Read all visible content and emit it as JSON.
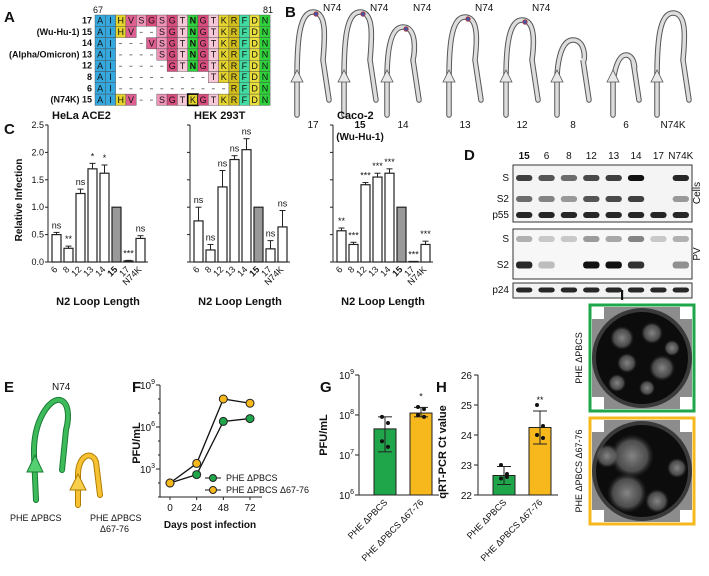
{
  "panel_a": {
    "label": "A",
    "pos_start": "67",
    "pos_end": "81",
    "rows": [
      {
        "name": "",
        "len": "17",
        "seq": "AIHVSGSGTNGTKRFDN"
      },
      {
        "name": "(Wu-Hu-1)",
        "len": "15",
        "seq": "AIHV--SGTNGTKRFDN"
      },
      {
        "name": "",
        "len": "14",
        "seq": "AI---VSGTNGTKRFDN"
      },
      {
        "name": "(Alpha/Omicron)",
        "len": "13",
        "seq": "AI----SGTNGTKRFDN"
      },
      {
        "name": "",
        "len": "12",
        "seq": "AI-----GTNGTKRFDN"
      },
      {
        "name": "",
        "len": "8",
        "seq": "AI---------TKRFDN"
      },
      {
        "name": "",
        "len": "6",
        "seq": "AI-----------RFDN"
      },
      {
        "name": "(N74K)",
        "len": "15",
        "seq": "AIHV--SGTKGTKRFDN"
      }
    ],
    "residue_colors": {
      "A": "#35a8de",
      "I": "#35a8de",
      "H": "#e6d52e",
      "V": "#de5f92",
      "S": "#ef92b8",
      "G": "#d94d7e",
      "T": "#f7c7d7",
      "N": "#2fd23a",
      "K": "#e6d52e",
      "R": "#d4bf1c",
      "F": "#42dca3",
      "D": "#e8de3c"
    }
  },
  "panel_b": {
    "label": "B",
    "residue_label": "N74",
    "structures": [
      {
        "label": "17",
        "sub": "",
        "shows_n74": true
      },
      {
        "label": "15",
        "sub": "(Wu-Hu-1)",
        "shows_n74": true
      },
      {
        "label": "14",
        "sub": "",
        "shows_n74": true
      },
      {
        "label": "13",
        "sub": "",
        "shows_n74": true
      },
      {
        "label": "12",
        "sub": "",
        "shows_n74": true
      },
      {
        "label": "8",
        "sub": "",
        "shows_n74": false
      },
      {
        "label": "6",
        "sub": "",
        "shows_n74": false
      },
      {
        "label": "N74K",
        "sub": "",
        "shows_n74": false
      }
    ]
  },
  "panel_c": {
    "label": "C",
    "ylabel": "Relative Infection",
    "xlabel": "N2 Loop Length"
  },
  "panel_d": {
    "label": "D",
    "lanes": [
      "15",
      "6",
      "8",
      "12",
      "13",
      "14",
      "17",
      "N74K"
    ],
    "cells_bands": [
      "S",
      "S2",
      "p55"
    ],
    "pv_bands": [
      "S",
      "S2"
    ],
    "loading_band": "p24",
    "cells_label": "Cells",
    "pv_label": "PV"
  },
  "panel_e": {
    "label": "E",
    "residue_label": "N74",
    "left_caption": "PHE ΔPBCS",
    "right_caption_line1": "PHE ΔPBCS",
    "right_caption_line2": "Δ67-76",
    "colors": {
      "PHE ΔPBCS": "#1fa64a",
      "PHE ΔPBCS Δ67-76": "#f6b81c"
    }
  },
  "panel_i": {
    "label": "I",
    "top_label": "PHE ΔPBCS",
    "bottom_label": "PHE ΔPBCS Δ67-76",
    "top_border": "#1fa64a",
    "bottom_border": "#f6b81c"
  },
  "chart_data": [
    {
      "panel": "C",
      "type": "bar",
      "title": "HeLa ACE2",
      "categories": [
        "6",
        "8",
        "12",
        "13",
        "14",
        "15",
        "17",
        "N74K"
      ],
      "values": [
        0.5,
        0.25,
        1.25,
        1.7,
        1.62,
        1.0,
        0.02,
        0.43
      ],
      "errors": [
        0.04,
        0.04,
        0.08,
        0.1,
        0.15,
        0,
        0.01,
        0.05
      ],
      "significance": [
        "ns",
        "**",
        "ns",
        "*",
        "*",
        "",
        "***",
        "ns"
      ],
      "reference_category": "15",
      "ylabel": "Relative Infection",
      "xlabel": "N2 Loop Length",
      "ylim": [
        0,
        2.5
      ],
      "yticks": [
        "0.0",
        "0.5",
        "1.0",
        "1.5",
        "2.0",
        "2.5"
      ]
    },
    {
      "panel": "C",
      "type": "bar",
      "title": "HEK 293T",
      "categories": [
        "6",
        "8",
        "12",
        "13",
        "14",
        "15",
        "17",
        "N74K"
      ],
      "values": [
        0.75,
        0.22,
        1.37,
        1.87,
        2.05,
        1.0,
        0.24,
        0.64
      ],
      "errors": [
        0.25,
        0.1,
        0.3,
        0.07,
        0.2,
        0,
        0.15,
        0.3
      ],
      "significance": [
        "ns",
        "ns",
        "ns",
        "ns",
        "ns",
        "",
        "ns",
        "ns"
      ],
      "reference_category": "15",
      "xlabel": "N2 Loop Length",
      "ylim": [
        0,
        2.5
      ]
    },
    {
      "panel": "C",
      "type": "bar",
      "title": "Caco-2",
      "categories": [
        "6",
        "8",
        "12",
        "13",
        "14",
        "15",
        "17",
        "N74K"
      ],
      "values": [
        0.57,
        0.32,
        1.41,
        1.55,
        1.62,
        1.0,
        0.01,
        0.32
      ],
      "errors": [
        0.05,
        0.04,
        0.04,
        0.07,
        0.08,
        0,
        0.0,
        0.06
      ],
      "significance": [
        "**",
        "***",
        "***",
        "***",
        "***",
        "",
        "***",
        "***"
      ],
      "reference_category": "15",
      "xlabel": "N2 Loop Length",
      "ylim": [
        0,
        2.5
      ]
    },
    {
      "panel": "F",
      "type": "line",
      "yscale": "log",
      "ylabel": "PFU/mL",
      "xlabel": "Days post infection",
      "x": [
        0,
        24,
        48,
        72
      ],
      "ylim": [
        10,
        1000000000
      ],
      "yticks": [
        "10^3",
        "10^6",
        "10^9"
      ],
      "xticks": [
        "0",
        "24",
        "48",
        "72"
      ],
      "legend": "bottom-right",
      "series": [
        {
          "name": "PHE ΔPBCS",
          "color": "#1fa64a",
          "values": [
            100,
            400,
            2500000,
            4000000
          ]
        },
        {
          "name": "PHE ΔPBCS Δ67-76",
          "color": "#f6b81c",
          "values": [
            100,
            2500,
            100000000,
            50000000
          ]
        }
      ]
    },
    {
      "panel": "G",
      "type": "bar",
      "yscale": "log",
      "ylabel": "PFU/mL",
      "ylim": [
        1000000,
        1000000000
      ],
      "yticks": [
        "10^6",
        "10^7",
        "10^8",
        "10^9"
      ],
      "categories": [
        "PHE ΔPBCS",
        "PHE ΔPBCS Δ67-76"
      ],
      "colors": [
        "#1fa64a",
        "#f6b81c"
      ],
      "values": [
        45000000,
        112000000
      ],
      "error_range": [
        [
          12000000,
          90000000
        ],
        [
          90000000,
          155000000
        ]
      ],
      "points": [
        [
          90000000,
          63000000,
          22000000,
          16000000
        ],
        [
          158000000,
          140000000,
          100000000,
          90000000
        ]
      ],
      "significance": [
        "",
        "*"
      ]
    },
    {
      "panel": "H",
      "type": "bar",
      "ylabel": "qRT-PCR Ct value",
      "ylim": [
        22,
        26
      ],
      "yticks": [
        "22",
        "23",
        "24",
        "25",
        "26"
      ],
      "categories": [
        "PHE ΔPBCS",
        "PHE ΔPBCS Δ67-76"
      ],
      "colors": [
        "#1fa64a",
        "#f6b81c"
      ],
      "values": [
        22.65,
        24.25
      ],
      "error_range": [
        [
          22.35,
          22.95
        ],
        [
          23.7,
          24.8
        ]
      ],
      "points": [
        [
          23.0,
          22.6,
          22.55,
          22.7
        ],
        [
          25.0,
          24.3,
          24.0,
          23.9
        ]
      ],
      "significance": [
        "",
        "**"
      ]
    }
  ]
}
